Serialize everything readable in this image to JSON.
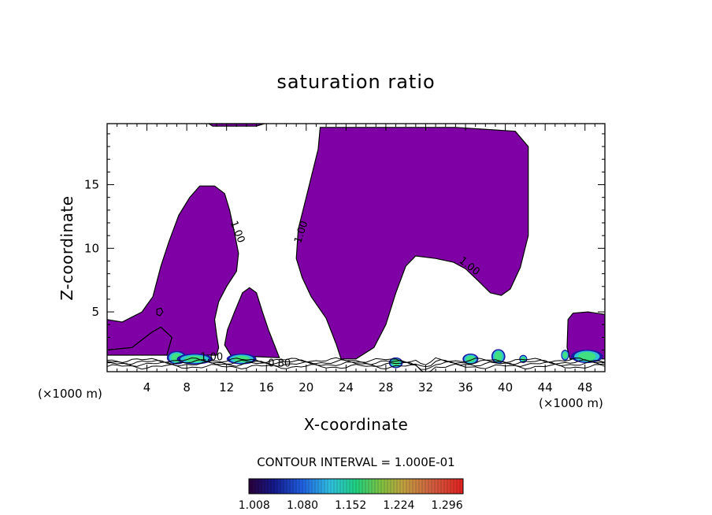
{
  "chart_data": {
    "type": "contour",
    "title": "saturation ratio",
    "xlabel": "X-coordinate",
    "ylabel": "Z-coordinate",
    "x_unit_left": "(×1000 m)",
    "x_unit_right": "(×1000 m)",
    "xlim": [
      0,
      50
    ],
    "ylim": [
      0.3,
      19.8
    ],
    "x_ticks": [
      4,
      8,
      12,
      16,
      20,
      24,
      28,
      32,
      36,
      40,
      44,
      48
    ],
    "y_ticks": [
      5,
      10,
      15
    ],
    "contour_interval_text": "CONTOUR INTERVAL = 1.000E-01",
    "contour_labels": [
      {
        "text": "1.00",
        "x": 12.8,
        "y": 11.2,
        "angle": 68
      },
      {
        "text": "1.00",
        "x": 19.8,
        "y": 11.2,
        "angle": -72
      },
      {
        "text": "1.00",
        "x": 36.2,
        "y": 8.4,
        "angle": 38
      },
      {
        "text": "1.00",
        "x": 10.5,
        "y": 1.2,
        "angle": 0
      },
      {
        "text": "0.80",
        "x": 17.3,
        "y": 0.7,
        "angle": 0
      }
    ],
    "colorbar": {
      "ticks": [
        "1.008",
        "1.080",
        "1.152",
        "1.224",
        "1.296"
      ],
      "range": [
        1.0,
        1.32
      ]
    },
    "fill_color": "#7f00a5",
    "regions": [
      {
        "name": "left-cloud",
        "points": [
          [
            0,
            4.4
          ],
          [
            1.5,
            4.2
          ],
          [
            3.5,
            5.0
          ],
          [
            4.6,
            6.2
          ],
          [
            5.4,
            8.6
          ],
          [
            6.2,
            10.5
          ],
          [
            7.2,
            12.6
          ],
          [
            8.3,
            14.0
          ],
          [
            9.3,
            14.9
          ],
          [
            10.8,
            14.9
          ],
          [
            11.8,
            14.3
          ],
          [
            12.3,
            13.0
          ],
          [
            12.8,
            11.2
          ],
          [
            13.2,
            9.6
          ],
          [
            13.0,
            8.2
          ],
          [
            12.0,
            7.0
          ],
          [
            11.2,
            5.8
          ],
          [
            10.8,
            4.4
          ],
          [
            11.0,
            3.2
          ],
          [
            11.2,
            2.2
          ],
          [
            11.0,
            1.6
          ],
          [
            6.0,
            1.6
          ],
          [
            6.5,
            3.0
          ],
          [
            5.4,
            3.8
          ],
          [
            4.5,
            3.4
          ],
          [
            2.5,
            2.2
          ],
          [
            0,
            2.0
          ]
        ]
      },
      {
        "name": "left-cloud-base",
        "points": [
          [
            0,
            2.0
          ],
          [
            2.5,
            2.2
          ],
          [
            4.5,
            3.4
          ],
          [
            5.4,
            3.8
          ],
          [
            6.5,
            3.0
          ],
          [
            6.0,
            1.6
          ],
          [
            0,
            1.6
          ]
        ]
      },
      {
        "name": "right-lobe",
        "points": [
          [
            12.1,
            3.6
          ],
          [
            12.8,
            5.0
          ],
          [
            13.6,
            6.5
          ],
          [
            14.3,
            6.9
          ],
          [
            15.0,
            6.5
          ],
          [
            15.6,
            5.0
          ],
          [
            16.2,
            3.6
          ],
          [
            16.8,
            2.4
          ],
          [
            17.3,
            1.4
          ],
          [
            14.5,
            1.5
          ],
          [
            12.5,
            1.5
          ],
          [
            11.8,
            2.4
          ]
        ]
      },
      {
        "name": "central-anvil",
        "points": [
          [
            21.4,
            19.5
          ],
          [
            35.0,
            19.5
          ],
          [
            41.0,
            19.2
          ],
          [
            42.3,
            18.0
          ],
          [
            42.3,
            15.0
          ],
          [
            42.3,
            11.0
          ],
          [
            41.5,
            8.5
          ],
          [
            40.5,
            6.8
          ],
          [
            39.6,
            6.3
          ],
          [
            38.5,
            6.5
          ],
          [
            37.2,
            7.5
          ],
          [
            36.0,
            8.4
          ],
          [
            34.8,
            8.9
          ],
          [
            33.0,
            9.2
          ],
          [
            31.0,
            9.4
          ],
          [
            30.0,
            8.6
          ],
          [
            29.0,
            6.5
          ],
          [
            28.0,
            4.0
          ],
          [
            26.8,
            2.2
          ],
          [
            25.0,
            1.3
          ],
          [
            23.5,
            1.3
          ],
          [
            23.0,
            2.5
          ],
          [
            22.0,
            4.5
          ],
          [
            20.5,
            6.2
          ],
          [
            19.6,
            7.7
          ],
          [
            19.0,
            9.2
          ],
          [
            19.2,
            11.5
          ],
          [
            20.0,
            14.0
          ],
          [
            20.7,
            16.2
          ],
          [
            21.2,
            17.8
          ]
        ]
      },
      {
        "name": "right-edge-cloud",
        "points": [
          [
            46.3,
            4.4
          ],
          [
            46.8,
            4.9
          ],
          [
            48.3,
            5.0
          ],
          [
            50,
            4.8
          ],
          [
            50,
            1.3
          ],
          [
            46.5,
            1.3
          ],
          [
            46.2,
            2.2
          ]
        ]
      },
      {
        "name": "top-sliver",
        "points": [
          [
            10.2,
            19.8
          ],
          [
            15.8,
            19.8
          ],
          [
            15.0,
            19.6
          ],
          [
            10.6,
            19.6
          ]
        ]
      },
      {
        "name": "small-blob",
        "points": [
          [
            5.0,
            5.2
          ],
          [
            5.4,
            5.3
          ],
          [
            5.6,
            5.0
          ],
          [
            5.3,
            4.7
          ],
          [
            5.0,
            4.8
          ]
        ]
      }
    ],
    "hotspots": [
      {
        "x": 7.0,
        "y": 1.4,
        "rx": 1.0,
        "ry": 0.4
      },
      {
        "x": 8.8,
        "y": 1.3,
        "rx": 1.8,
        "ry": 0.3
      },
      {
        "x": 13.5,
        "y": 1.3,
        "rx": 1.5,
        "ry": 0.3
      },
      {
        "x": 29.0,
        "y": 1.0,
        "rx": 0.7,
        "ry": 0.3
      },
      {
        "x": 36.5,
        "y": 1.3,
        "rx": 0.8,
        "ry": 0.3
      },
      {
        "x": 39.3,
        "y": 1.5,
        "rx": 0.7,
        "ry": 0.45
      },
      {
        "x": 41.8,
        "y": 1.3,
        "rx": 0.4,
        "ry": 0.2
      },
      {
        "x": 48.2,
        "y": 1.5,
        "rx": 1.6,
        "ry": 0.4
      },
      {
        "x": 46.0,
        "y": 1.6,
        "rx": 0.4,
        "ry": 0.3
      }
    ],
    "surface_lines": [
      0.7,
      0.9,
      1.05,
      1.2
    ]
  }
}
